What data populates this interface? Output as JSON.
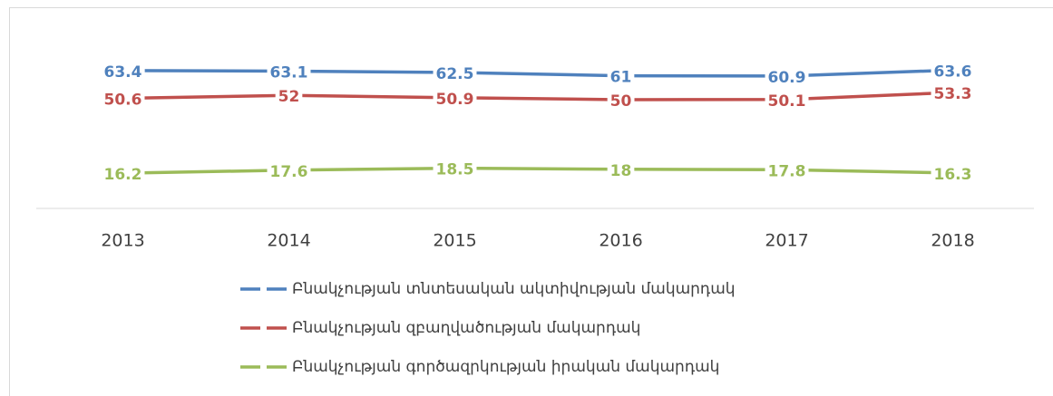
{
  "chart_data": {
    "type": "line",
    "categories": [
      "2013",
      "2014",
      "2015",
      "2016",
      "2017",
      "2018"
    ],
    "series": [
      {
        "name": "Բնակչության տնտեսական ակտիվության մակարդակ",
        "color": "#4f81bd",
        "values": [
          63.4,
          63.1,
          62.5,
          61,
          60.9,
          63.6
        ]
      },
      {
        "name": "Բնակչության զբաղվածության մակարդակ",
        "color": "#c0504d",
        "values": [
          50.6,
          52,
          50.9,
          50,
          50.1,
          53.3
        ]
      },
      {
        "name": "Բնակչության գործազրկության իրական մակարդակ",
        "color": "#9bbb59",
        "values": [
          16.2,
          17.6,
          18.5,
          18,
          17.8,
          16.3
        ]
      }
    ],
    "ylim": [
      0,
      70
    ]
  }
}
